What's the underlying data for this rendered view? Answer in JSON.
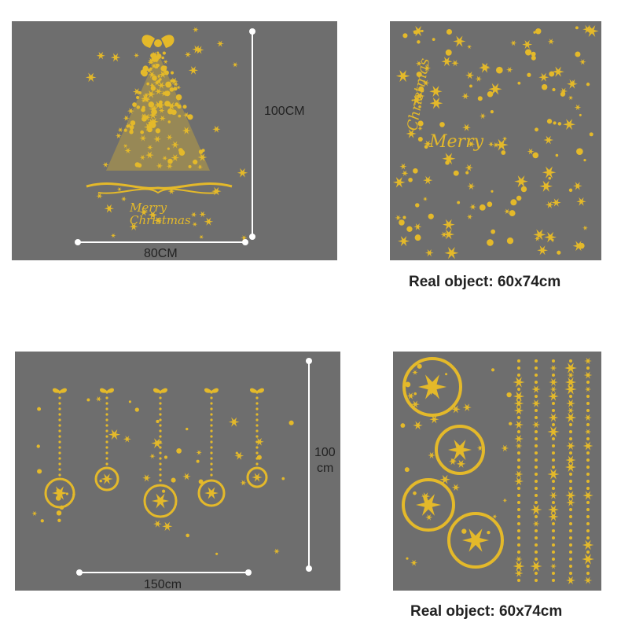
{
  "panels": {
    "tree": {
      "width_label": "80CM",
      "height_label": "100CM",
      "text": "Merry Christmas"
    },
    "sheet_top": {
      "caption": "Real object: 60x74cm",
      "text_merry": "Merry",
      "text_christmas": "Christmas"
    },
    "ornaments": {
      "width_label": "150cm",
      "height_label_line1": "100",
      "height_label_line2": "cm"
    },
    "sheet_bottom": {
      "caption": "Real object: 60x74cm"
    }
  },
  "colors": {
    "gold": "#e4b92a",
    "panel_bg": "#6e6e6e"
  }
}
